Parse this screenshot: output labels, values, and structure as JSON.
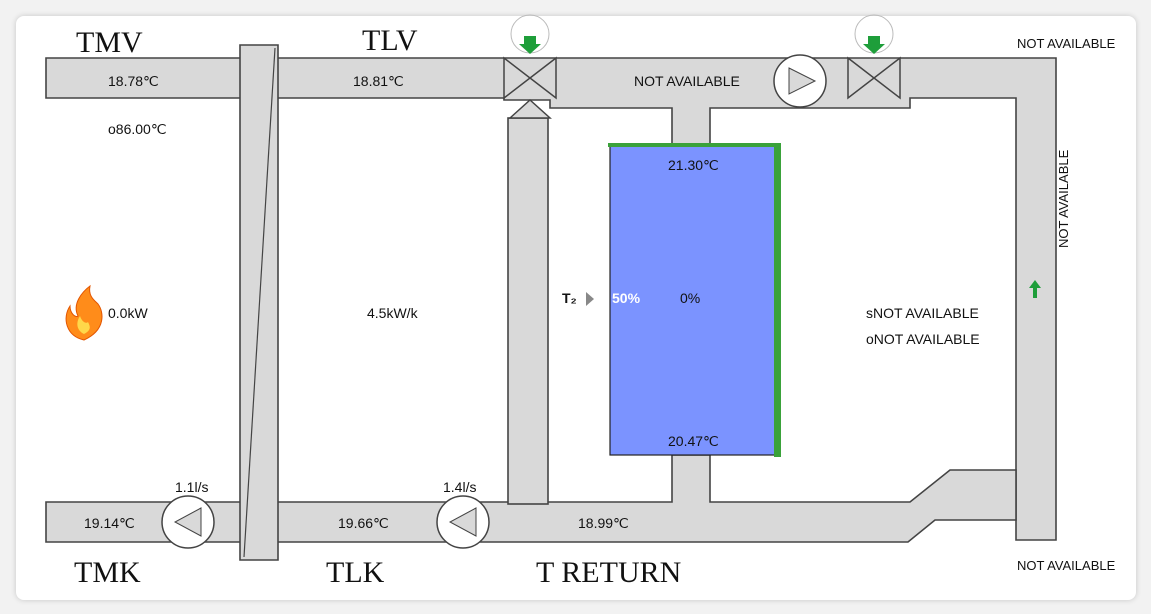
{
  "labels": {
    "tmv": "TMV",
    "tlv": "TLV",
    "tmk": "TMK",
    "tlk": "TLK",
    "treturn": "T RETURN"
  },
  "values": {
    "tmv_temp": "18.78℃",
    "tmv_setpoint": "o86.00℃",
    "tlv_temp": "18.81℃",
    "supply_right": "NOT AVAILABLE",
    "top_right": "NOT AVAILABLE",
    "right_vertical": "NOT AVAILABLE",
    "bottom_right": "NOT AVAILABLE",
    "burner_power": "0.0kW",
    "hx_coefficient": "4.5kW/k",
    "tank_top_temp": "21.30℃",
    "tank_bottom_temp": "20.47℃",
    "tank_level_left": "50%",
    "tank_level_center": "0%",
    "sensor_label": "T₂",
    "status_s": "sNOT AVAILABLE",
    "status_o": "oNOT AVAILABLE",
    "tmk_temp": "19.14℃",
    "tlk_temp": "19.66℃",
    "treturn_temp": "18.99℃",
    "pump1_flow": "1.1l/s",
    "pump2_flow": "1.4l/s"
  },
  "colors": {
    "pipe": "#d9d9d9",
    "pipe_stroke": "#444444",
    "tank_fill": "#7b93ff",
    "tank_edge": "#3aa23a",
    "arrow_green": "#1e9e3a"
  },
  "icons": [
    "flame-icon",
    "valve-icon",
    "pump-icon",
    "arrow-up-icon",
    "arrow-down-icon"
  ]
}
